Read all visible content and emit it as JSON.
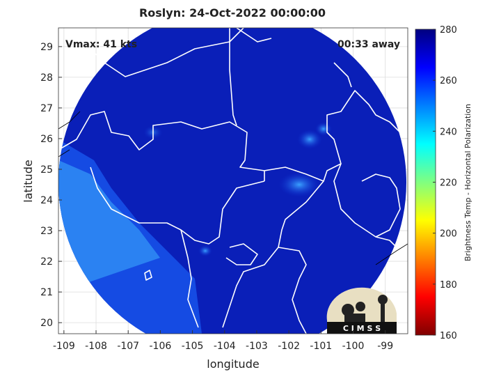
{
  "chart_data": {
    "type": "map",
    "title": "Roslyn: 24-Oct-2022 00:00:00",
    "annotations": [
      "Vmax: 41 kts",
      "00:33 away"
    ],
    "xlabel": "longitude",
    "ylabel": "latitude",
    "xlim": [
      -109.17,
      -98.3
    ],
    "ylim": [
      19.64,
      29.61
    ],
    "xticks": [
      -109,
      -108,
      -107,
      -106,
      -105,
      -104,
      -103,
      -102,
      -101,
      -100,
      -99
    ],
    "yticks": [
      20,
      21,
      22,
      23,
      24,
      25,
      26,
      27,
      28,
      29
    ],
    "grid": true,
    "colorbar": {
      "label": "Brightness Temp - Horizontal Polarization",
      "lim": [
        160,
        280
      ],
      "ticks": [
        160,
        180,
        200,
        220,
        240,
        260,
        280
      ],
      "colors": [
        "#800000",
        "#ff0000",
        "#ff8000",
        "#ffff00",
        "#80ff80",
        "#00ffff",
        "#0080ff",
        "#0000ff",
        "#000080"
      ]
    },
    "logo_text": "C I M S S"
  }
}
